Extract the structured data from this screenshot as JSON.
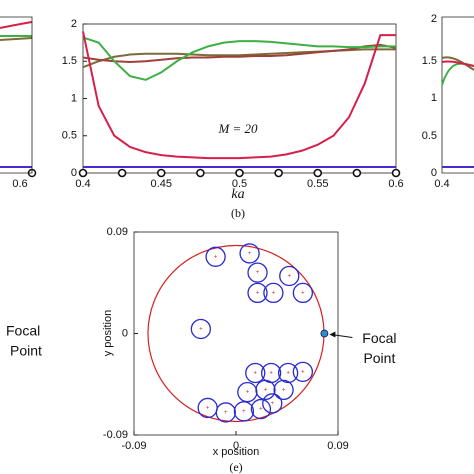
{
  "chart_data": [
    {
      "type": "line",
      "xlabel": "ka",
      "annotation": "M = 20",
      "caption": "(b)",
      "x": [
        0.4,
        0.41,
        0.42,
        0.43,
        0.44,
        0.45,
        0.46,
        0.47,
        0.48,
        0.49,
        0.5,
        0.51,
        0.52,
        0.53,
        0.54,
        0.55,
        0.56,
        0.57,
        0.58,
        0.59,
        0.6
      ],
      "series": [
        {
          "color": "#7b6b3a",
          "values": [
            1.42,
            1.5,
            1.56,
            1.59,
            1.6,
            1.6,
            1.6,
            1.59,
            1.58,
            1.58,
            1.58,
            1.59,
            1.6,
            1.61,
            1.62,
            1.63,
            1.64,
            1.65,
            1.66,
            1.66,
            1.66
          ]
        },
        {
          "color": "#a0403a",
          "values": [
            1.55,
            1.52,
            1.5,
            1.49,
            1.5,
            1.52,
            1.54,
            1.55,
            1.55,
            1.56,
            1.56,
            1.57,
            1.57,
            1.58,
            1.6,
            1.62,
            1.64,
            1.66,
            1.7,
            1.72,
            1.68
          ]
        },
        {
          "color": "#3cb043",
          "values": [
            1.82,
            1.75,
            1.5,
            1.3,
            1.25,
            1.35,
            1.5,
            1.62,
            1.7,
            1.75,
            1.77,
            1.77,
            1.76,
            1.74,
            1.72,
            1.7,
            1.7,
            1.69,
            1.69,
            1.7,
            1.7
          ]
        },
        {
          "color": "#d6204a",
          "values": [
            1.9,
            0.9,
            0.5,
            0.35,
            0.28,
            0.24,
            0.22,
            0.21,
            0.2,
            0.2,
            0.2,
            0.21,
            0.22,
            0.25,
            0.3,
            0.38,
            0.5,
            0.75,
            1.2,
            1.85,
            1.85
          ]
        },
        {
          "color": "#4b2bd0",
          "values": [
            0.08,
            0.08,
            0.08,
            0.08,
            0.08,
            0.08,
            0.08,
            0.08,
            0.08,
            0.08,
            0.08,
            0.08,
            0.08,
            0.08,
            0.08,
            0.08,
            0.08,
            0.08,
            0.08,
            0.08,
            0.08
          ]
        }
      ],
      "markers": {
        "x": [
          0.4,
          0.425,
          0.45,
          0.475,
          0.5,
          0.525,
          0.55,
          0.575,
          0.6
        ],
        "y": [
          0,
          0,
          0,
          0,
          0,
          0,
          0,
          0,
          0
        ]
      },
      "xlim": [
        0.4,
        0.6
      ],
      "xticks": [
        0.4,
        0.45,
        0.5,
        0.55,
        0.6
      ],
      "ylim": [
        0,
        2
      ],
      "yticks": [
        0,
        0.5,
        1,
        1.5,
        2
      ]
    },
    {
      "type": "scatter",
      "xlabel": "x position",
      "ylabel": "y position",
      "caption": "(e)",
      "x": [
        -0.018,
        0.012,
        0.019,
        0.047,
        0.033,
        0.019,
        0.059,
        -0.031,
        0.017,
        0.031,
        0.046,
        0.059,
        0.01,
        0.026,
        0.042,
        -0.025,
        -0.009,
        0.007,
        0.022,
        0.032
      ],
      "y": [
        0.068,
        0.071,
        0.054,
        0.051,
        0.036,
        0.036,
        0.036,
        0.004,
        -0.035,
        -0.035,
        -0.035,
        -0.034,
        -0.052,
        -0.05,
        -0.05,
        -0.066,
        -0.07,
        -0.069,
        -0.067,
        -0.062
      ],
      "color": "#2a2ad0",
      "focal_point": {
        "label": "Focal Point",
        "x": 0.078,
        "y": 0
      },
      "xlim": [
        -0.09,
        0.09
      ],
      "xticks": [
        {
          "value": -0.09,
          "label": "-0.09"
        },
        0,
        0.09
      ],
      "ylim": [
        -0.09,
        0.09
      ],
      "yticks": [
        {
          "value": -0.09,
          "label": "-0.09"
        },
        0,
        0.09
      ]
    }
  ],
  "fragments": {
    "left_tick": "0.6",
    "left_label": [
      "Focal",
      "Point"
    ],
    "right_yticks": [
      "2",
      "1.5",
      "1",
      "0.5",
      "0"
    ],
    "right_xtick": "0.4"
  }
}
